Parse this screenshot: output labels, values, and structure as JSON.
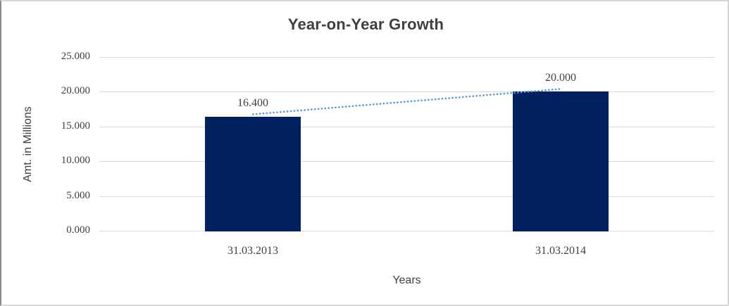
{
  "chart_data": {
    "type": "bar",
    "title": "Year-on-Year Growth",
    "xlabel": "Years",
    "ylabel": "Amt. in Millions",
    "categories": [
      "31.03.2013",
      "31.03.2014"
    ],
    "values": [
      16.4,
      20.0
    ],
    "data_labels": [
      "16.400",
      "20.000"
    ],
    "y_ticks": [
      {
        "label": "25.000",
        "value": 25
      },
      {
        "label": "20.000",
        "value": 20
      },
      {
        "label": "15.000",
        "value": 15
      },
      {
        "label": "10.000",
        "value": 10
      },
      {
        "label": "5.000",
        "value": 5
      },
      {
        "label": "0.000",
        "value": 0
      }
    ],
    "ylim": [
      0,
      25
    ],
    "grid": true,
    "legend": "none",
    "trendline": {
      "style": "dotted",
      "from_category": "31.03.2013",
      "to_category": "31.03.2014",
      "color": "#5b9bd5"
    },
    "colors": {
      "bar": "#002060",
      "gridline": "#d9d9d9",
      "text": "#3f3f3f",
      "background": "#ffffff"
    }
  }
}
